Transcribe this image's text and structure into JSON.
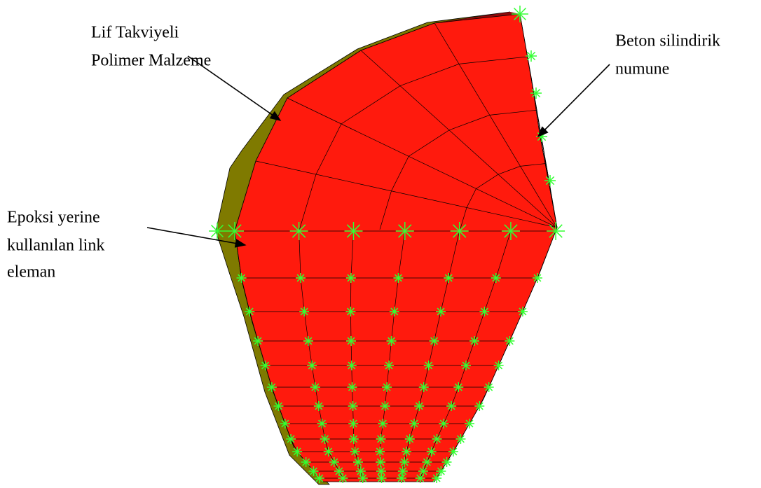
{
  "annotations": [
    {
      "lines": [
        "Lif Takviyeli",
        "Polimer Malzeme"
      ]
    },
    {
      "lines": [
        "Beton silindirik",
        "numune"
      ]
    },
    {
      "lines": [
        "Epoksi yerine",
        "kullanılan link",
        "eleman"
      ]
    }
  ]
}
